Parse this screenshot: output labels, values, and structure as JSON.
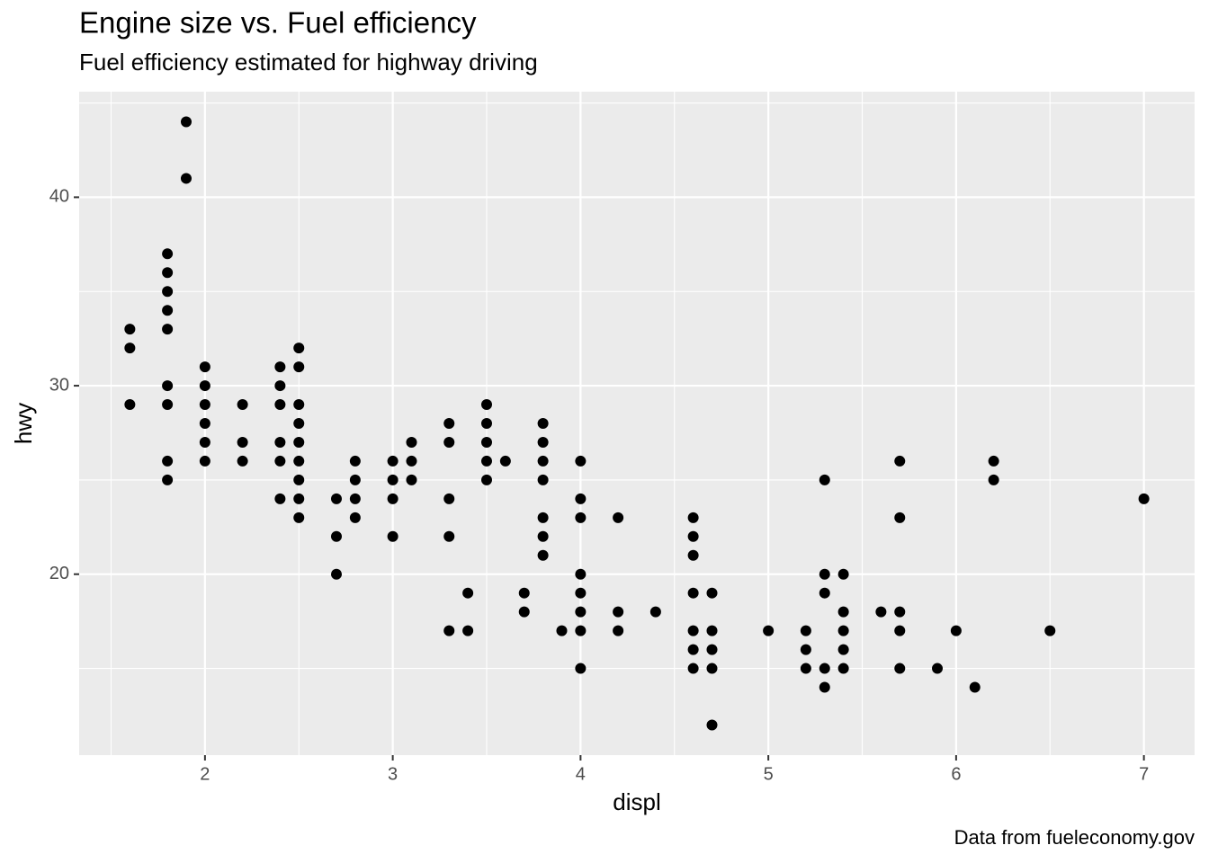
{
  "chart_data": {
    "type": "scatter",
    "title": "Engine size vs. Fuel efficiency",
    "subtitle": "Fuel efficiency estimated for highway driving",
    "caption": "Data from fueleconomy.gov",
    "x_label": "displ",
    "y_label": "hwy",
    "color": "#000000",
    "x": [
      1.6,
      1.6,
      1.6,
      1.8,
      1.8,
      1.8,
      1.8,
      1.8,
      1.8,
      1.8,
      1.8,
      1.8,
      1.9,
      1.9,
      2.0,
      2.0,
      2.0,
      2.0,
      2.0,
      2.0,
      2.2,
      2.2,
      2.2,
      2.4,
      2.4,
      2.4,
      2.4,
      2.4,
      2.4,
      2.5,
      2.5,
      2.5,
      2.5,
      2.5,
      2.5,
      2.5,
      2.5,
      2.5,
      2.7,
      2.7,
      2.7,
      2.8,
      2.8,
      2.8,
      2.8,
      3.0,
      3.0,
      3.0,
      3.0,
      3.1,
      3.1,
      3.1,
      3.3,
      3.3,
      3.3,
      3.3,
      3.3,
      3.4,
      3.4,
      3.5,
      3.5,
      3.5,
      3.5,
      3.5,
      3.6,
      3.7,
      3.7,
      3.8,
      3.8,
      3.8,
      3.8,
      3.8,
      3.8,
      3.8,
      3.9,
      4.0,
      4.0,
      4.0,
      4.0,
      4.0,
      4.0,
      4.0,
      4.0,
      4.2,
      4.2,
      4.2,
      4.4,
      4.6,
      4.6,
      4.6,
      4.6,
      4.6,
      4.6,
      4.6,
      4.7,
      4.7,
      4.7,
      4.7,
      4.7,
      5.0,
      5.2,
      5.2,
      5.2,
      5.3,
      5.3,
      5.3,
      5.3,
      5.3,
      5.4,
      5.4,
      5.4,
      5.4,
      5.4,
      5.6,
      5.7,
      5.7,
      5.7,
      5.7,
      5.7,
      5.9,
      6.0,
      6.1,
      6.2,
      6.2,
      6.5,
      7.0
    ],
    "values": [
      33,
      32,
      29,
      37,
      36,
      35,
      34,
      33,
      30,
      29,
      26,
      25,
      44,
      41,
      31,
      30,
      29,
      28,
      27,
      26,
      29,
      27,
      26,
      31,
      30,
      29,
      27,
      26,
      24,
      32,
      31,
      29,
      28,
      27,
      26,
      25,
      24,
      23,
      24,
      22,
      20,
      26,
      25,
      24,
      23,
      26,
      25,
      24,
      22,
      27,
      26,
      25,
      28,
      27,
      24,
      22,
      17,
      19,
      17,
      29,
      28,
      27,
      26,
      25,
      26,
      19,
      18,
      28,
      27,
      26,
      25,
      23,
      22,
      21,
      17,
      26,
      24,
      23,
      20,
      19,
      18,
      17,
      15,
      23,
      18,
      17,
      18,
      23,
      22,
      21,
      19,
      17,
      16,
      15,
      19,
      17,
      16,
      15,
      12,
      17,
      17,
      16,
      15,
      25,
      20,
      19,
      15,
      14,
      20,
      18,
      17,
      16,
      15,
      18,
      26,
      23,
      18,
      17,
      15,
      15,
      17,
      14,
      26,
      25,
      17,
      24
    ],
    "xlim": [
      1.33,
      7.27
    ],
    "ylim": [
      10.4,
      45.6
    ],
    "xticks": [
      2,
      3,
      4,
      5,
      6,
      7
    ],
    "yticks": [
      20,
      30,
      40
    ],
    "xminor": [
      1.5,
      2.5,
      3.5,
      4.5,
      5.5,
      6.5
    ],
    "yminor": [
      15,
      25,
      35,
      45
    ],
    "grid": true
  }
}
